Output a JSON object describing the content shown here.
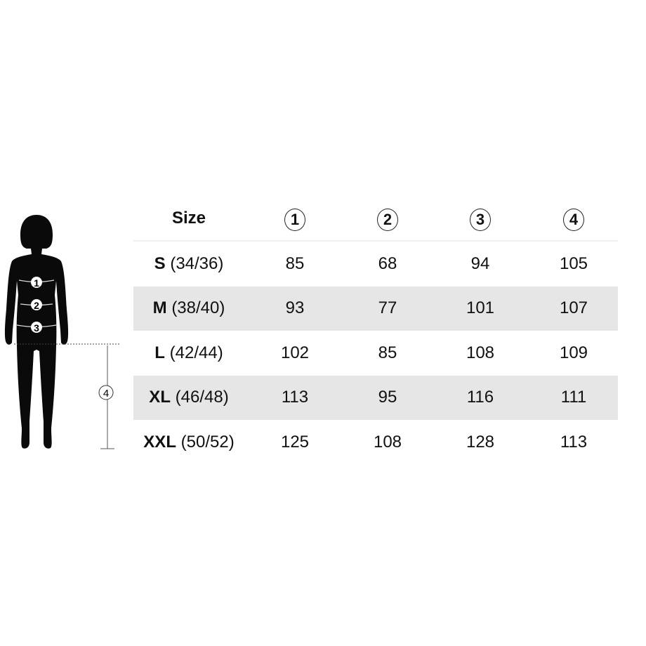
{
  "figure": {
    "markers": [
      "1",
      "2",
      "3",
      "4"
    ]
  },
  "table": {
    "header": {
      "size": "Size",
      "columns": [
        "1",
        "2",
        "3",
        "4"
      ]
    },
    "rows": [
      {
        "size_letter": "S",
        "size_eu": "(34/36)",
        "values": [
          "85",
          "68",
          "94",
          "105"
        ]
      },
      {
        "size_letter": "M",
        "size_eu": "(38/40)",
        "values": [
          "93",
          "77",
          "101",
          "107"
        ]
      },
      {
        "size_letter": "L",
        "size_eu": "(42/44)",
        "values": [
          "102",
          "85",
          "108",
          "109"
        ]
      },
      {
        "size_letter": "XL",
        "size_eu": "(46/48)",
        "values": [
          "113",
          "95",
          "116",
          "111"
        ]
      },
      {
        "size_letter": "XXL",
        "size_eu": "(50/52)",
        "values": [
          "125",
          "108",
          "128",
          "113"
        ]
      }
    ]
  }
}
